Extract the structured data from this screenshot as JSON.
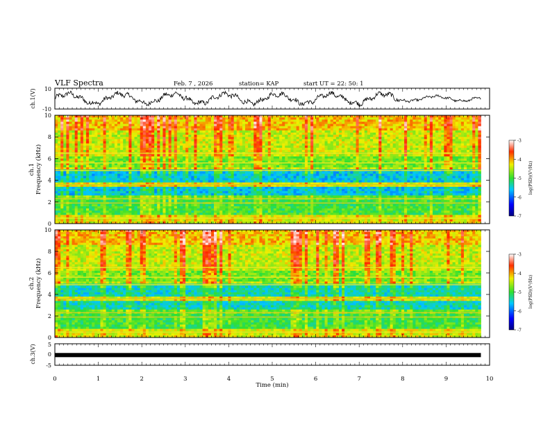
{
  "header": {
    "title": "VLF Spectra",
    "date": "Feb. 7 , 2026",
    "station": "station= KAP",
    "start": "start  UT =   22: 50: 1"
  },
  "chart_data": [
    {
      "type": "line",
      "name": "ch1-waveform",
      "ylabel": "ch.1(V)",
      "ylim": [
        -10,
        10
      ],
      "yticks": [
        "10",
        "-10"
      ],
      "xlim": [
        0,
        10
      ],
      "description_series": "broadband voltage, oscillating between about -6 and 6 V",
      "series": [
        {
          "name": "ch.1",
          "x_end": 9.8,
          "amplitude_range": [
            -6,
            6
          ]
        }
      ]
    },
    {
      "type": "heatmap",
      "name": "ch1-spectrogram",
      "ylabel": "ch.1\nFrequency (kHz)",
      "ylabel_line1": "ch.1",
      "ylabel_line2": "Frequency  (kHz)",
      "ylim": [
        0,
        10
      ],
      "yticks": [
        "0",
        "2",
        "4",
        "6",
        "8",
        "10"
      ],
      "xlim": [
        0,
        10
      ],
      "x_end": 9.8,
      "colorbar": {
        "label": "log(PSD)(V²/Hz)",
        "range": [
          -7,
          -3
        ],
        "ticks": [
          "-3",
          "-4",
          "-5",
          "-6",
          "-7"
        ]
      }
    },
    {
      "type": "heatmap",
      "name": "ch2-spectrogram",
      "ylabel_line1": "ch.2",
      "ylabel_line2": "Frequency  (kHz)",
      "ylim": [
        0,
        10
      ],
      "yticks": [
        "0",
        "2",
        "4",
        "6",
        "8",
        "10"
      ],
      "xlim": [
        0,
        10
      ],
      "x_end": 9.8,
      "colorbar": {
        "label": "log(PSD)(V²/Hz)",
        "range": [
          -7,
          -3
        ],
        "ticks": [
          "-3",
          "-4",
          "-5",
          "-6",
          "-7"
        ]
      }
    },
    {
      "type": "line",
      "name": "ch3-waveform",
      "ylabel": "ch.3(V)",
      "ylim": [
        -5,
        5
      ],
      "yticks": [
        "5",
        "0",
        "-5"
      ],
      "xlim": [
        0,
        10
      ],
      "series": [
        {
          "name": "ch.3",
          "x_end": 9.8,
          "value": -0.1
        }
      ]
    }
  ],
  "xaxis": {
    "label": "Time  (min)",
    "ticks": [
      "0",
      "1",
      "2",
      "3",
      "4",
      "5",
      "6",
      "7",
      "8",
      "9",
      "10"
    ]
  },
  "colorbar_label": "log(PSD)(V²/Hz)",
  "colors": {
    "low": "#00007f",
    "blue": "#0000ff",
    "cyan": "#00c8ff",
    "green": "#20e040",
    "yellow": "#f0f000",
    "red": "#ff0000",
    "high": "#8b0000"
  }
}
